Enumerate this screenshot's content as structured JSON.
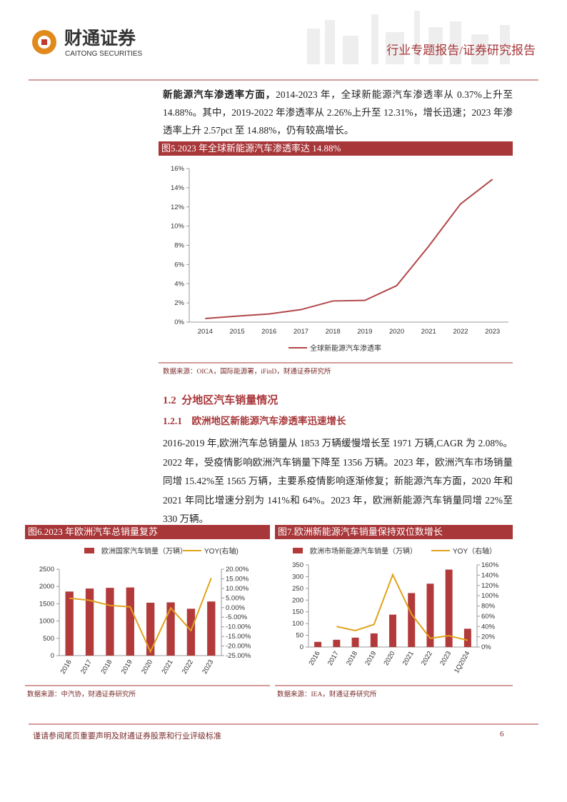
{
  "header": {
    "logo_cn": "财通证券",
    "logo_en": "CAITONG SECURITIES",
    "report_type": "行业专题报告/证券研究报告"
  },
  "paragraph1": {
    "lead": "新能源汽车渗透率方面，",
    "text": "2014-2023 年，全球新能源汽车渗透率从 0.37%上升至 14.88%。其中，2019-2022 年渗透率从 2.26%上升至 12.31%，增长迅速；2023 年渗透率上升 2.57pct 至 14.88%，仍有较高增长。"
  },
  "section": {
    "number": "1.2",
    "title": "分地区汽车销量情况"
  },
  "subsection": {
    "number": "1.2.1",
    "title": "欧洲地区新能源汽车渗透率迅速增长"
  },
  "paragraph2": "2016-2019 年,欧洲汽车总销量从 1853 万辆缓慢增长至 1971 万辆,CAGR 为 2.08%。2022 年，受疫情影响欧洲汽车销量下降至 1356 万辆。2023 年，欧洲汽车市场销量同增 15.42%至 1565 万辆，主要系疫情影响逐渐修复；新能源汽车方面，2020 年和 2021 年同比增速分别为 141%和 64%。2023 年，欧洲新能源汽车销量同增 22%至 330 万辆。",
  "footer": {
    "note": "谨请参阅尾页重要声明及财通证券股票和行业评级标准",
    "page": "6"
  },
  "chart_data": [
    {
      "type": "line",
      "title": "图5.2023 年全球新能源汽车渗透率达 14.88%",
      "source": "数据来源：OICA，国际能源署，iFinD，财通证券研究所",
      "categories": [
        "2014",
        "2015",
        "2016",
        "2017",
        "2018",
        "2019",
        "2020",
        "2021",
        "2022",
        "2023"
      ],
      "series": [
        {
          "name": "全球新能源汽车渗透率",
          "color": "#b0474a",
          "values": [
            0.37,
            0.62,
            0.85,
            1.3,
            2.2,
            2.26,
            3.8,
            7.9,
            12.31,
            14.88
          ]
        }
      ],
      "ylim": [
        0,
        16
      ],
      "yticks": [
        {
          "value": 0,
          "label": "0%"
        },
        {
          "value": 2,
          "label": "2%"
        },
        {
          "value": 4,
          "label": "4%"
        },
        {
          "value": 6,
          "label": "6%"
        },
        {
          "value": 8,
          "label": "8%"
        },
        {
          "value": 10,
          "label": "10%"
        },
        {
          "value": 12,
          "label": "12%"
        },
        {
          "value": 14,
          "label": "14%"
        },
        {
          "value": 16,
          "label": "16%"
        }
      ],
      "grid": false
    },
    {
      "type": "combo",
      "title": "图6.2023 年欧洲汽车总销量复苏",
      "source": "数据来源：中汽协，财通证券研究所",
      "categories": [
        "2016",
        "2017",
        "2018",
        "2019",
        "2020",
        "2021",
        "2022",
        "2023"
      ],
      "series": [
        {
          "name": "欧洲国家汽车销量（万辆）",
          "color": "#b23a3a",
          "type": "bar",
          "values": [
            1853,
            1940,
            1960,
            1971,
            1530,
            1540,
            1356,
            1565
          ]
        },
        {
          "name": "YOY(右轴)",
          "color": "#e0a21c",
          "type": "line",
          "axis": "y2",
          "values": [
            4.9,
            3.8,
            1.1,
            0.4,
            -23,
            -0.2,
            -12,
            15.42
          ]
        }
      ],
      "ylim": [
        0,
        2500
      ],
      "yticks": [
        0,
        500,
        1000,
        1500,
        2000,
        2500
      ],
      "y2lim": [
        -25,
        20
      ],
      "y2ticks": [
        {
          "value": 20,
          "label": "20.00%"
        },
        {
          "value": 15,
          "label": "15.00%"
        },
        {
          "value": 10,
          "label": "10.00%"
        },
        {
          "value": 5,
          "label": "5.00%"
        },
        {
          "value": 0,
          "label": "0.00%"
        },
        {
          "value": -5,
          "label": "-5.00%"
        },
        {
          "value": -10,
          "label": "-10.00%"
        },
        {
          "value": -15,
          "label": "-15.00%"
        },
        {
          "value": -20,
          "label": "-20.00%"
        },
        {
          "value": -25,
          "label": "-25.00%"
        }
      ],
      "grid": false
    },
    {
      "type": "combo",
      "title": "图7.欧洲新能源汽车销量保持双位数增长",
      "source": "数据来源：IEA，财通证券研究所",
      "categories": [
        "2016",
        "2017",
        "2018",
        "2019",
        "2020",
        "2021",
        "2022",
        "2023",
        "1Q2024"
      ],
      "series": [
        {
          "name": "欧洲市场新能源汽车销量（万辆）",
          "color": "#b23a3a",
          "type": "bar",
          "values": [
            22,
            31,
            40,
            58,
            138,
            230,
            270,
            330,
            78
          ]
        },
        {
          "name": "YOY（右轴）",
          "color": "#e0a21c",
          "type": "line",
          "axis": "y2",
          "values": [
            null,
            40,
            32,
            44,
            141,
            64,
            17,
            22,
            13
          ]
        }
      ],
      "ylim": [
        0,
        350
      ],
      "yticks": [
        0,
        50,
        100,
        150,
        200,
        250,
        300,
        350
      ],
      "y2lim": [
        0,
        160
      ],
      "y2ticks": [
        {
          "value": 0,
          "label": "0%"
        },
        {
          "value": 20,
          "label": "20%"
        },
        {
          "value": 40,
          "label": "40%"
        },
        {
          "value": 60,
          "label": "60%"
        },
        {
          "value": 80,
          "label": "80%"
        },
        {
          "value": 100,
          "label": "100%"
        },
        {
          "value": 120,
          "label": "120%"
        },
        {
          "value": 140,
          "label": "140%"
        },
        {
          "value": 160,
          "label": "160%"
        }
      ],
      "grid": false
    }
  ]
}
